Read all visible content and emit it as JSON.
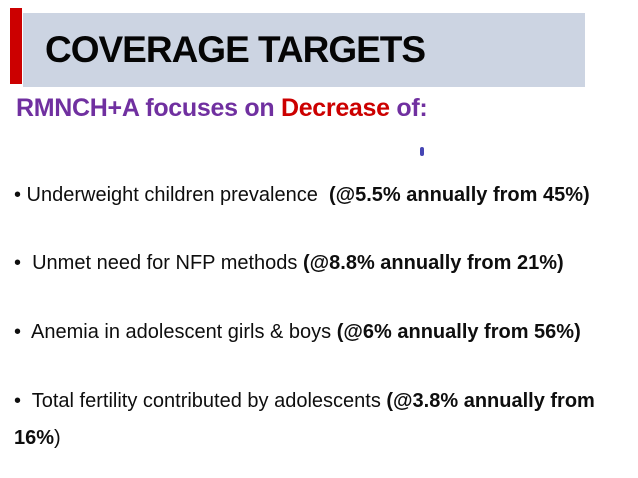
{
  "slide": {
    "title": "COVERAGE TARGETS",
    "heading": {
      "segments": [
        {
          "text": "RMNCH+A focuses on ",
          "color": "#7030a0"
        },
        {
          "text": "Decrease",
          "color": "#cc0000"
        },
        {
          "text": " of:",
          "color": "#7030a0"
        }
      ],
      "full_text": "RMNCH+A focuses on Decrease of:"
    },
    "bullets": [
      {
        "lines": [
          [
            {
              "text": "• Underweight children prevalence  ",
              "bold": false
            },
            {
              "text": "(@5.5% annually from 45%)",
              "bold": true
            }
          ]
        ]
      },
      {
        "lines": [
          [
            {
              "text": "•  Unmet need for NFP methods ",
              "bold": false
            },
            {
              "text": "(@8.8% annually from 21%)",
              "bold": true
            }
          ]
        ]
      },
      {
        "lines": [
          [
            {
              "text": "•  Anemia in adolescent girls & boys ",
              "bold": false
            },
            {
              "text": "(@6% annually from 56%)",
              "bold": true
            }
          ]
        ]
      },
      {
        "lines": [
          [
            {
              "text": "•  Total fertility contributed by adolescents ",
              "bold": false
            },
            {
              "text": "(@3.8% annually from",
              "bold": true
            }
          ],
          [
            {
              "text": "16%",
              "bold": true
            },
            {
              "text": ")",
              "bold": false
            }
          ]
        ]
      }
    ],
    "colors": {
      "accent_red_bar": "#cc0000",
      "banner_background": "#ccd4e2",
      "heading_purple": "#7030a0",
      "heading_red": "#cc0000",
      "body_text": "#0e0e0e",
      "tick_blue": "#4646b4"
    }
  }
}
